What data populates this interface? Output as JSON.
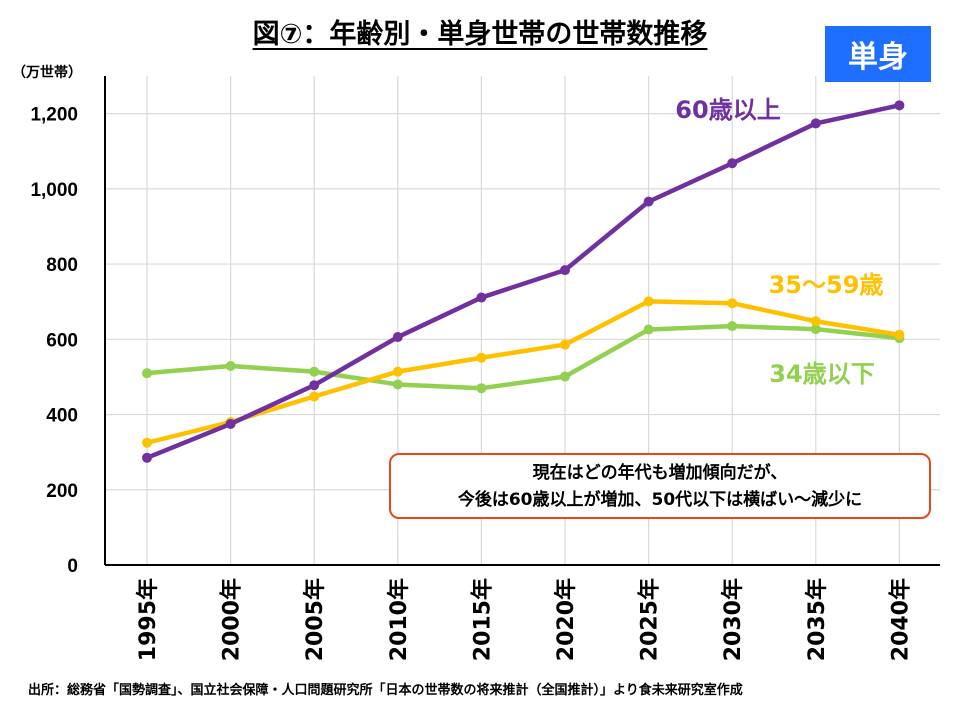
{
  "title": "図⑦：年齢別・単身世帯の世帯数推移",
  "badge": "単身",
  "unit": "（万世帯）",
  "callout": {
    "line1": "現在はどの年代も増加傾向だが、",
    "line2": "今後は60歳以上が増加、50代以下は横ばい～減少に"
  },
  "source": "出所：総務省「国勢調査」、国立社会保障・人口問題研究所「日本の世帯数の将来推計（全国推計）」より食未来研究室作成",
  "chart_data": {
    "type": "line",
    "title": "図⑦：年齢別・単身世帯の世帯数推移",
    "ylabel": "（万世帯）",
    "categories": [
      "1995年",
      "2000年",
      "2005年",
      "2010年",
      "2015年",
      "2020年",
      "2025年",
      "2030年",
      "2035年",
      "2040年"
    ],
    "ylim": [
      0,
      1300
    ],
    "yticks": [
      0,
      200,
      400,
      600,
      800,
      1000,
      1200
    ],
    "ytick_labels": [
      "0",
      "200",
      "400",
      "600",
      "800",
      "1,000",
      "1,200"
    ],
    "grid": true,
    "legend": "inline labels at line ends",
    "series": [
      {
        "name": "60歳以上",
        "color": "#7030a0",
        "values": [
          285,
          375,
          478,
          606,
          711,
          784,
          966,
          1068,
          1174,
          1222
        ]
      },
      {
        "name": "35～59歳",
        "color": "#ffc000",
        "values": [
          325,
          380,
          448,
          514,
          551,
          586,
          701,
          696,
          648,
          612
        ]
      },
      {
        "name": "34歳以下",
        "color": "#92d050",
        "values": [
          510,
          529,
          514,
          480,
          470,
          501,
          626,
          635,
          627,
          603
        ]
      }
    ]
  }
}
